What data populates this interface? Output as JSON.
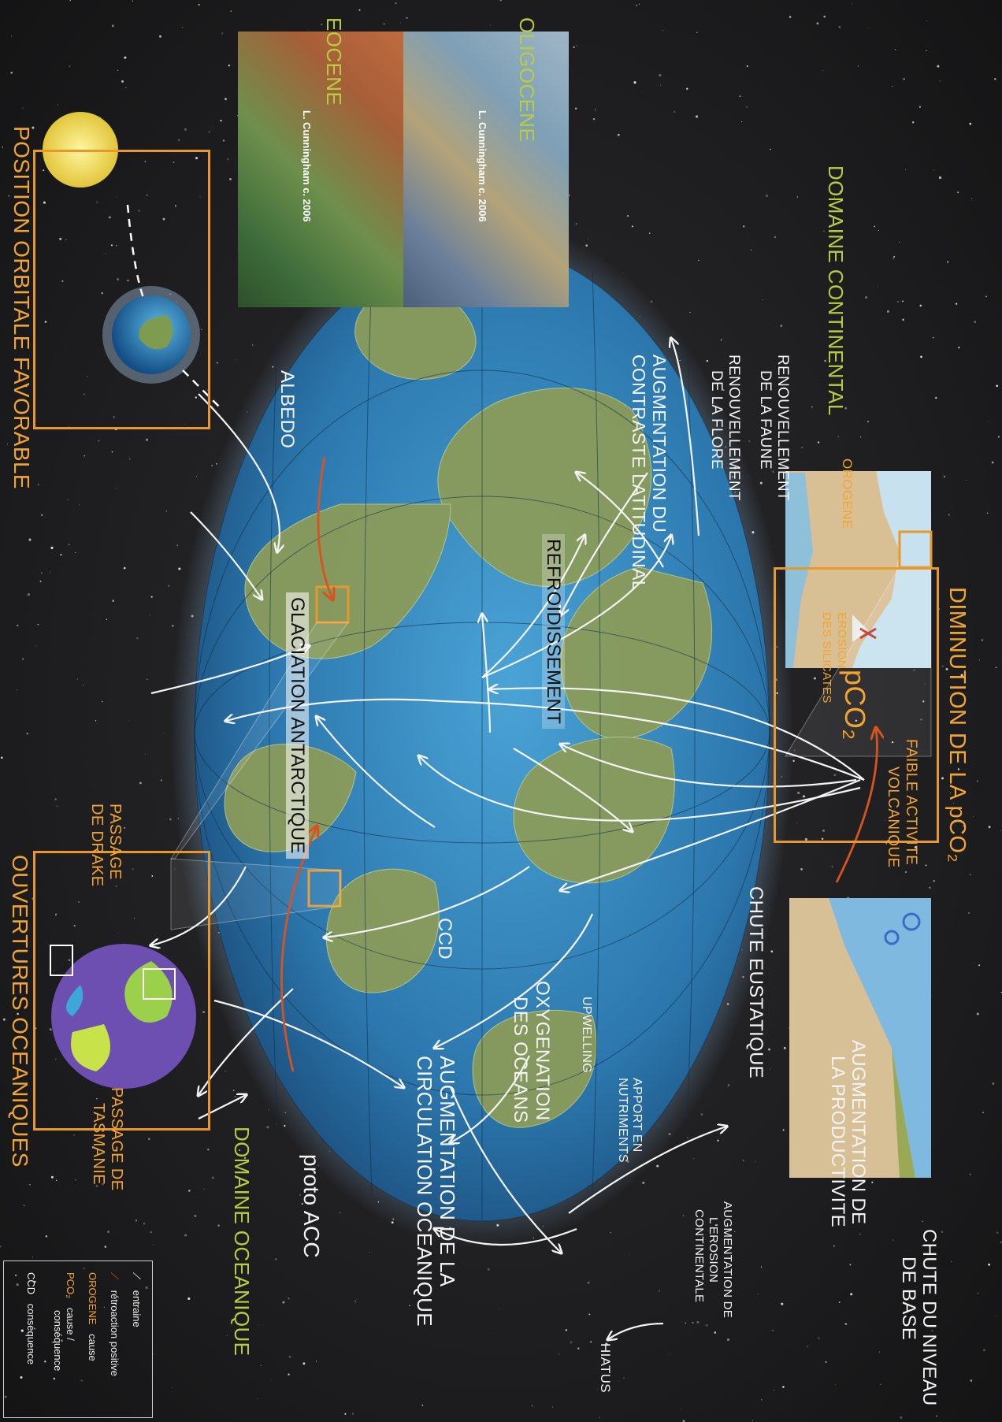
{
  "domains": {
    "continental": "DOMAINE CONTINENTAL",
    "oceanic": "DOMAINE OCEANIQUE"
  },
  "periods": {
    "eocene": "EOCENE",
    "oligocene": "OLIGOCENE",
    "credit": "L. Cunningham c. 2006"
  },
  "boxes": {
    "orbital": "POSITION ORBITALE FAVORABLE",
    "pco2_title": "DIMINUTION DE LA pCO₂",
    "ocean_openings": "OUVERTURES OCEANIQUES"
  },
  "causes": {
    "orogene": "OROGENE",
    "erosion_line1": "EROSION",
    "erosion_line2": "DES SILICATES",
    "pco2": "pCO₂",
    "volcanic_line1": "FAIBLE ACTIVITE",
    "volcanic_line2": "VOLCANIQUE",
    "drake_line1": "PASSAGE",
    "drake_line2": "DE DRAKE",
    "tasmania_line1": "PASSAGE DE",
    "tasmania_line2": "TASMANIE"
  },
  "consequences": {
    "fauna_line1": "RENOUVELLEMENT",
    "fauna_line2": "DE LA FAUNE",
    "flora_line1": "RENOUVELLEMENT",
    "flora_line2": "DE LA FLORE",
    "contrast_line1": "AUGMENTATION DU",
    "contrast_line2": "CONTRASTE LATITUDINAL",
    "albedo": "ALBEDO",
    "cooling": "REFROIDISSEMENT",
    "glaciation": "GLACIATION ANTARCTIQUE",
    "ccd": "CCD",
    "eustatic": "CHUTE EUSTATIQUE",
    "oxygenation_line1": "OXYGENATION",
    "oxygenation_line2": "DES OCEANS",
    "circulation_line1": "AUGMENTATION DE LA",
    "circulation_line2": "CIRCULATION OCEANIQUE",
    "proto_acc": "proto ACC",
    "productivity_line1": "AUGMENTATION DE",
    "productivity_line2": "LA PRODUCTIVITE",
    "upwelling": "UPWELLING",
    "nutrients_line1": "APPORT EN",
    "nutrients_line2": "NUTRIMENTS",
    "base_level_line1": "CHUTE DU NIVEAU",
    "base_level_line2": "DE BASE",
    "erosion_cont_line1": "AUGMENTATION DE",
    "erosion_cont_line2": "L'EROSION",
    "erosion_cont_line3": "CONTINENTALE",
    "hiatus": "HIATUS"
  },
  "legend": {
    "entraine": "entraine",
    "retroaction": "rétroaction positive",
    "orogene_word": "OROGENE",
    "cause": "cause",
    "pco2_word": "PCO₂",
    "cause_conseq": "cause /",
    "conseq": "conséquence",
    "ccd_word": "CCD",
    "conseq2": "conséquence"
  },
  "colors": {
    "background": "#1c1c1e",
    "orange": "#e8972b",
    "green_text": "#b7cd3f",
    "white_text": "#f4f4f4",
    "feedback_arrow": "#d9531e",
    "ocean": "#2e7fb8",
    "land": "#8a9a52"
  }
}
